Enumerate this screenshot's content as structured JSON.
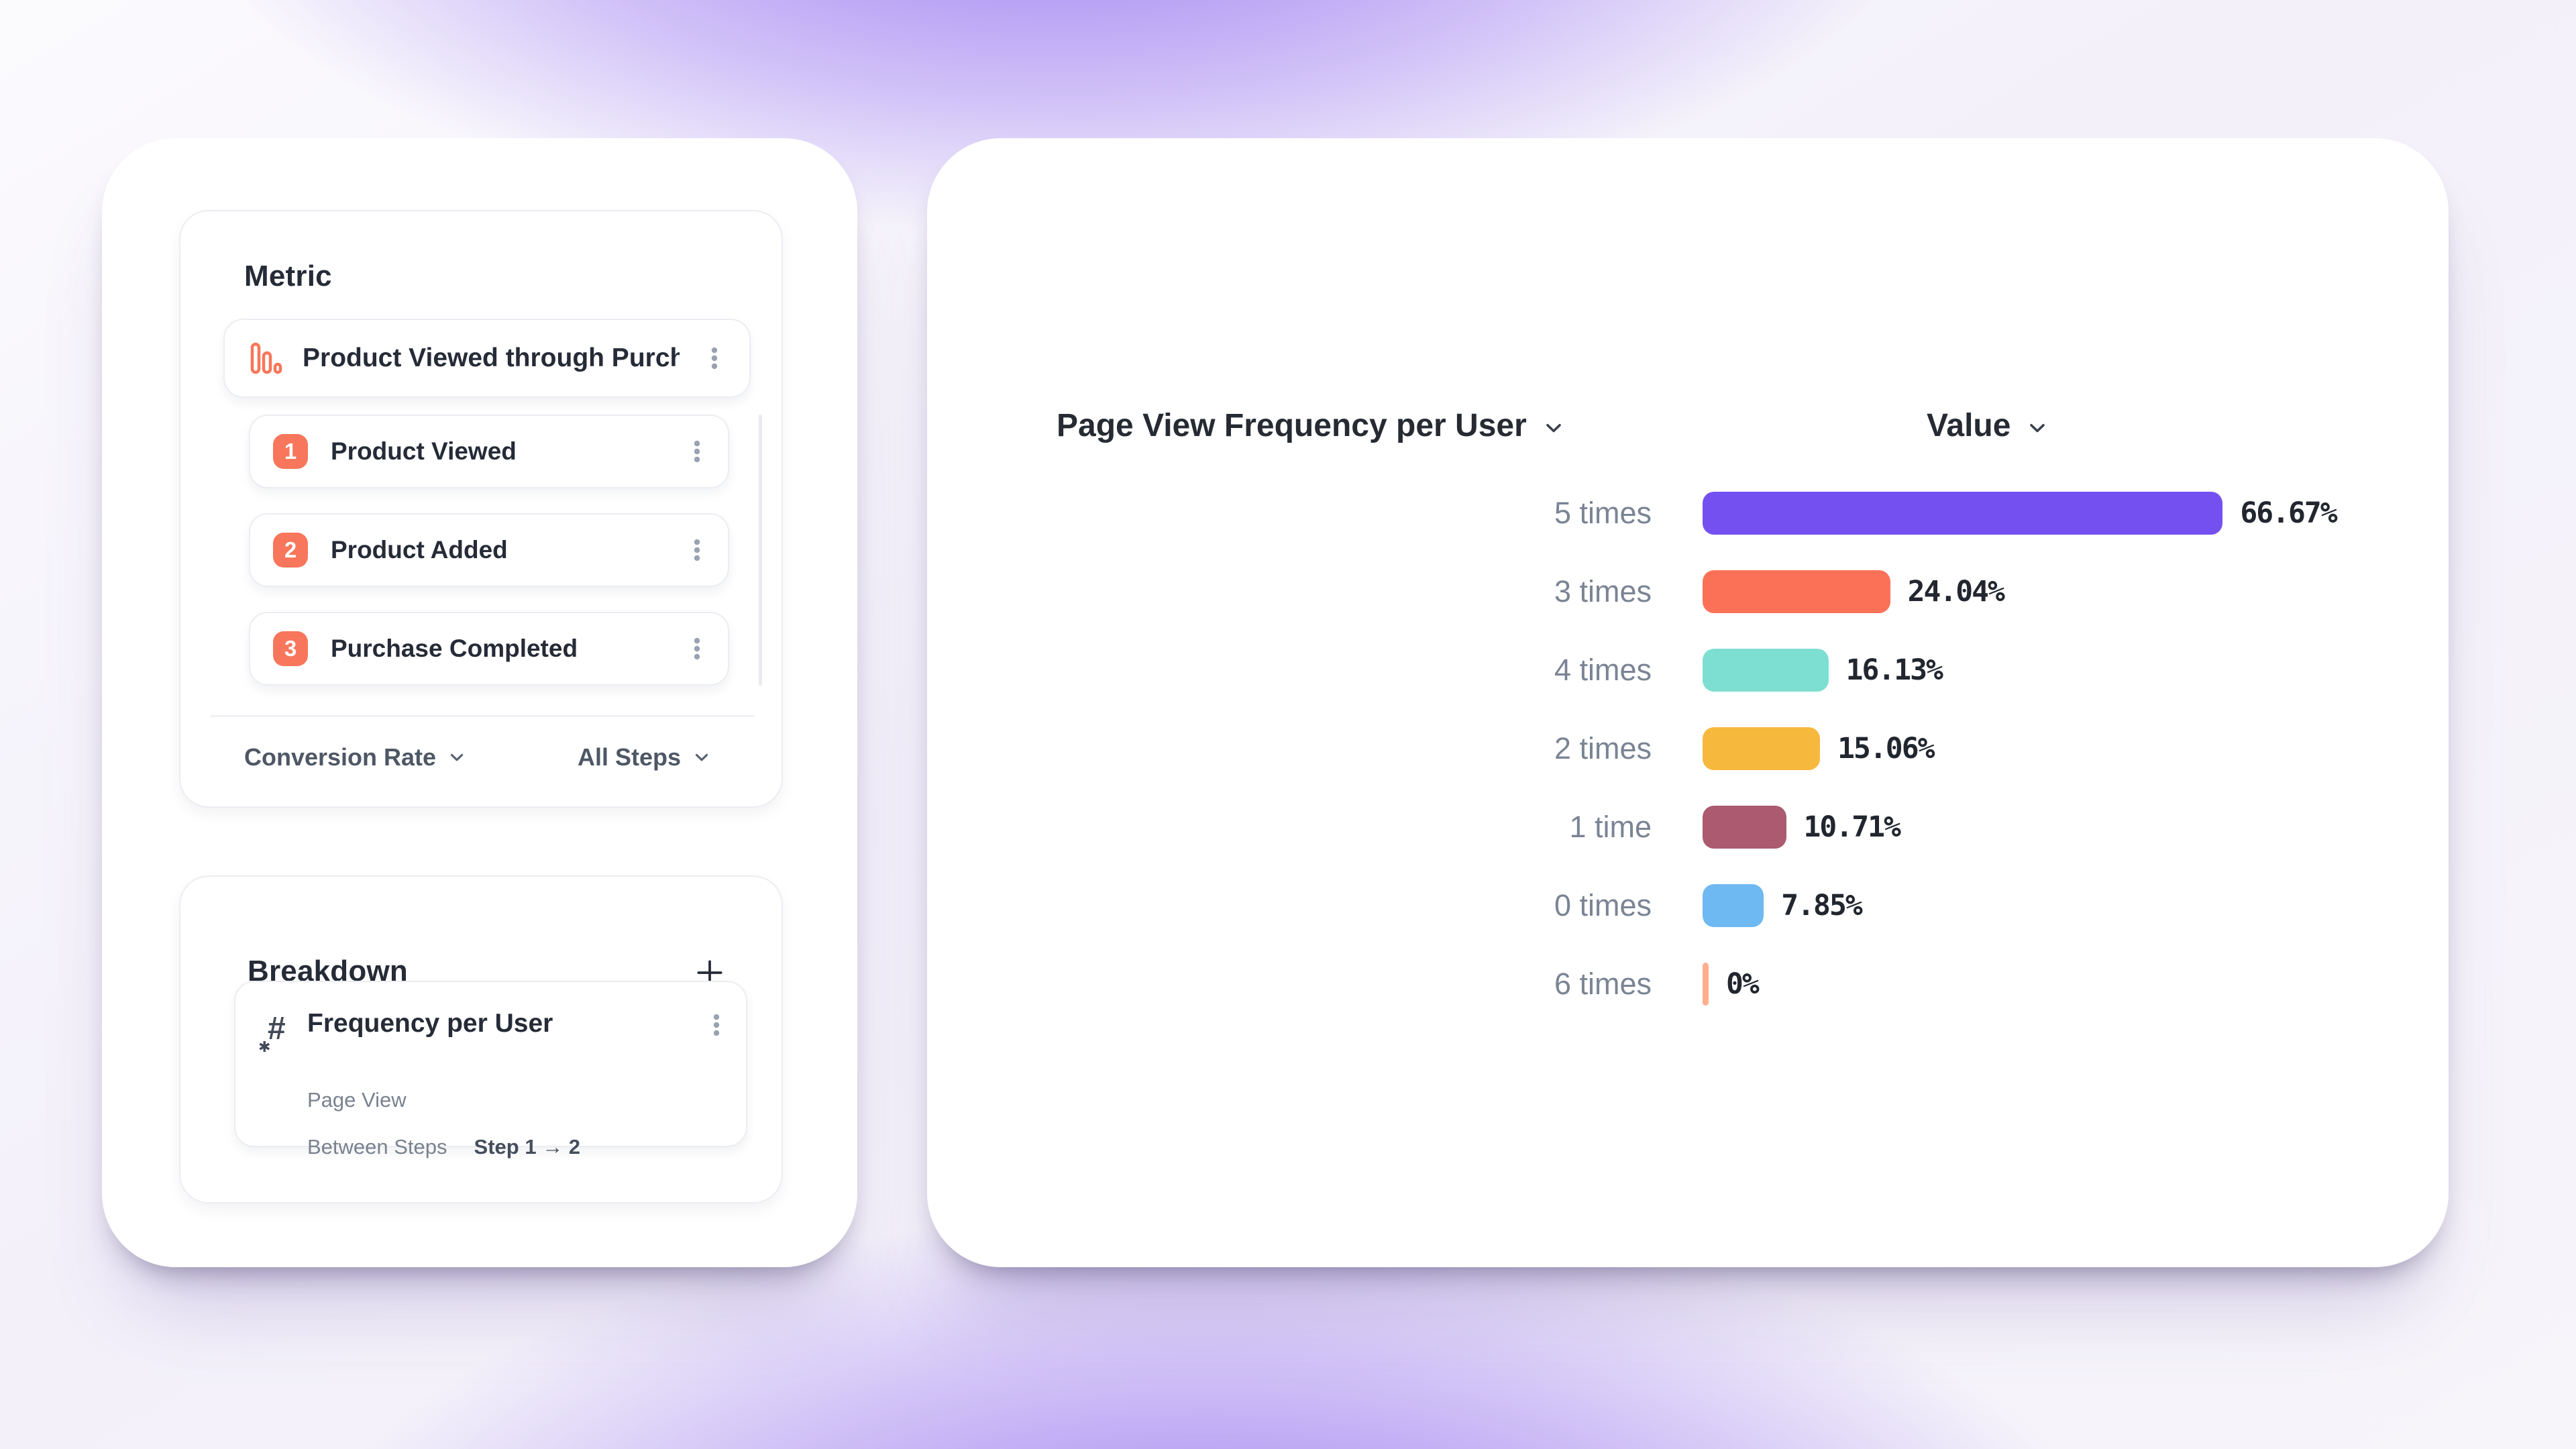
{
  "theme": {
    "accent_coral": "#F8765B",
    "background_purple": "#9472F0",
    "card_background": "#FFFFFF",
    "text_dark": "#252B37",
    "text_gray": "#7A8494"
  },
  "metric_panel": {
    "title": "Metric",
    "metric_item": {
      "label": "Product Viewed through Purch..."
    },
    "steps": [
      {
        "number": "1",
        "label": "Product Viewed"
      },
      {
        "number": "2",
        "label": "Product Added"
      },
      {
        "number": "3",
        "label": "Purchase Completed"
      }
    ],
    "measure_dropdown": "Conversion Rate",
    "steps_dropdown": "All Steps"
  },
  "breakdown_panel": {
    "title": "Breakdown",
    "item": {
      "label": "Frequency per User",
      "event_name": "Page View",
      "scope_label": "Between Steps",
      "scope_value": "Step 1 → 2"
    }
  },
  "chart_panel": {
    "title": "Page View Frequency per User",
    "value_header": "Value"
  },
  "chart_data": {
    "type": "bar",
    "orientation": "horizontal",
    "title": "Page View Frequency per User",
    "value_axis_label": "Value",
    "categories": [
      "5 times",
      "3 times",
      "4 times",
      "2 times",
      "1 time",
      "0 times",
      "6 times"
    ],
    "values": [
      66.67,
      24.04,
      16.13,
      15.06,
      10.71,
      7.85,
      0
    ],
    "labels": [
      "66.67%",
      "24.04%",
      "16.13%",
      "15.06%",
      "10.71%",
      "7.85%",
      "0%"
    ],
    "bar_colors": [
      "#7550F0",
      "#FB7158",
      "#7DDFD2",
      "#F6B93E",
      "#AC5A6F",
      "#6FB9F2",
      "#FFAE8C"
    ],
    "xlim": [
      0,
      100
    ],
    "grid": false,
    "legend": false
  }
}
